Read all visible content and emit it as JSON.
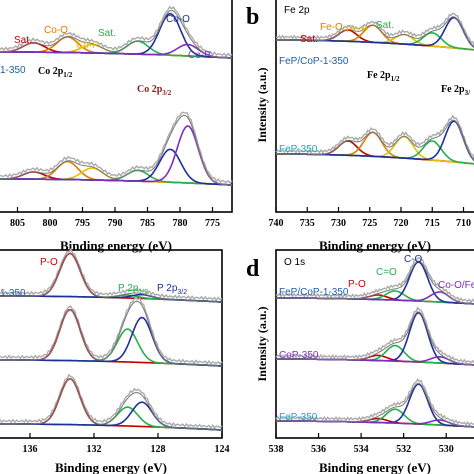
{
  "chart_data": [
    {
      "type": "line",
      "panel_letter": "",
      "region_label": "",
      "xlabel": "Binding energy (eV)",
      "ylabel": "",
      "xlim": [
        808,
        772
      ],
      "x_ticks": [
        805,
        800,
        795,
        790,
        785,
        780,
        775
      ],
      "samples": [
        "1-350",
        ""
      ],
      "peak_labels": [
        {
          "text": "Sat.",
          "color": "#c00000"
        },
        {
          "text": "Co-O",
          "color": "#e07b00"
        },
        {
          "text": "Co-P",
          "color": "#e6c000"
        },
        {
          "text": "Sat.",
          "color": "#22b14c"
        },
        {
          "text": "Co-O",
          "color": "#1f2f9c"
        },
        {
          "text": "Co-P",
          "color": "#7b2fbf"
        }
      ],
      "orbital_labels": [
        "Co 2p1/2",
        "Co 2p3/2"
      ],
      "peaks": [
        {
          "center": 802.5,
          "height": [
            0.18,
            0.12
          ],
          "color": "#c00000"
        },
        {
          "center": 797.3,
          "height": [
            0.3,
            0.3
          ],
          "color": "#e07b00"
        },
        {
          "center": 793.5,
          "height": [
            0.16,
            0.2
          ],
          "color": "#e6c000"
        },
        {
          "center": 786.5,
          "height": [
            0.25,
            0.18
          ],
          "color": "#22b14c"
        },
        {
          "center": 781.5,
          "height": [
            0.8,
            0.55
          ],
          "color": "#1f2f9c"
        },
        {
          "center": 778.8,
          "height": [
            0.22,
            0.95
          ],
          "color": "#7b2fbf"
        }
      ]
    },
    {
      "type": "line",
      "panel_letter": "b",
      "region_label": "Fe 2p",
      "xlabel": "Binding energy (eV)",
      "ylabel": "Intensity (a.u.)",
      "xlim": [
        740,
        708
      ],
      "x_ticks": [
        740,
        735,
        730,
        725,
        720,
        715,
        710
      ],
      "samples": [
        "FeP/CoP-1-350",
        "FeP-350"
      ],
      "peak_labels": [
        {
          "text": "Sat.",
          "color": "#c00000"
        },
        {
          "text": "Fe-O",
          "color": "#e07b00"
        },
        {
          "text": "Fe-P",
          "color": "#e6c000"
        },
        {
          "text": "Sat.",
          "color": "#22b14c"
        }
      ],
      "orbital_labels": [
        "Fe 2p1/2",
        "Fe 2p3/"
      ],
      "peaks": [
        {
          "center": 728.5,
          "height": [
            0.3,
            0.3
          ],
          "color": "#c00000"
        },
        {
          "center": 724.5,
          "height": [
            0.45,
            0.5
          ],
          "color": "#e07b00"
        },
        {
          "center": 719.5,
          "height": [
            0.25,
            0.45
          ],
          "color": "#e6c000"
        },
        {
          "center": 715.0,
          "height": [
            0.35,
            0.4
          ],
          "color": "#22b14c"
        },
        {
          "center": 711.5,
          "height": [
            0.8,
            0.85
          ],
          "color": "#1f2f9c"
        }
      ]
    },
    {
      "type": "line",
      "panel_letter": "",
      "region_label": "",
      "xlabel": "Binding energy (eV)",
      "ylabel": "",
      "xlim": [
        138,
        124
      ],
      "x_ticks": [
        136,
        132,
        128,
        124
      ],
      "samples": [
        "1-350",
        "",
        ""
      ],
      "peak_labels": [
        {
          "text": "P-O",
          "color": "#c00000"
        },
        {
          "text": "P 2p1/2",
          "color": "#22b14c"
        },
        {
          "text": "P 2p3/2",
          "color": "#1f2f9c"
        }
      ],
      "peaks": [
        {
          "center": 133.5,
          "height": [
            0.9,
            0.85,
            0.85
          ],
          "color": "#c00000"
        },
        {
          "center": 129.9,
          "height": [
            0.06,
            0.55,
            0.35
          ],
          "color": "#22b14c"
        },
        {
          "center": 129.0,
          "height": [
            0.08,
            0.75,
            0.45
          ],
          "color": "#1f2f9c"
        }
      ]
    },
    {
      "type": "line",
      "panel_letter": "d",
      "region_label": "O 1s",
      "xlabel": "Binding energy (eV)",
      "ylabel": "Intensity (a.u.)",
      "xlim": [
        538,
        528.6
      ],
      "x_ticks": [
        538,
        536,
        534,
        532,
        530
      ],
      "samples": [
        "FeP/CoP-1-350",
        "CoP-350",
        "FeP-350"
      ],
      "peak_labels": [
        {
          "text": "C-O",
          "color": "#1f2f9c"
        },
        {
          "text": "C=O",
          "color": "#22b14c"
        },
        {
          "text": "P-O",
          "color": "#c00000"
        },
        {
          "text": "Co-O/Fe",
          "color": "#7b2fbf"
        }
      ],
      "peaks": [
        {
          "center": 533.2,
          "height": [
            0.1,
            0.1,
            0.08
          ],
          "color": "#c00000"
        },
        {
          "center": 532.4,
          "height": [
            0.2,
            0.3,
            0.28
          ],
          "color": "#22b14c"
        },
        {
          "center": 531.3,
          "height": [
            0.85,
            0.95,
            0.8
          ],
          "color": "#1f2f9c"
        },
        {
          "center": 530.3,
          "height": [
            0.22,
            0.12,
            0.1
          ],
          "color": "#7b2fbf"
        }
      ]
    }
  ]
}
